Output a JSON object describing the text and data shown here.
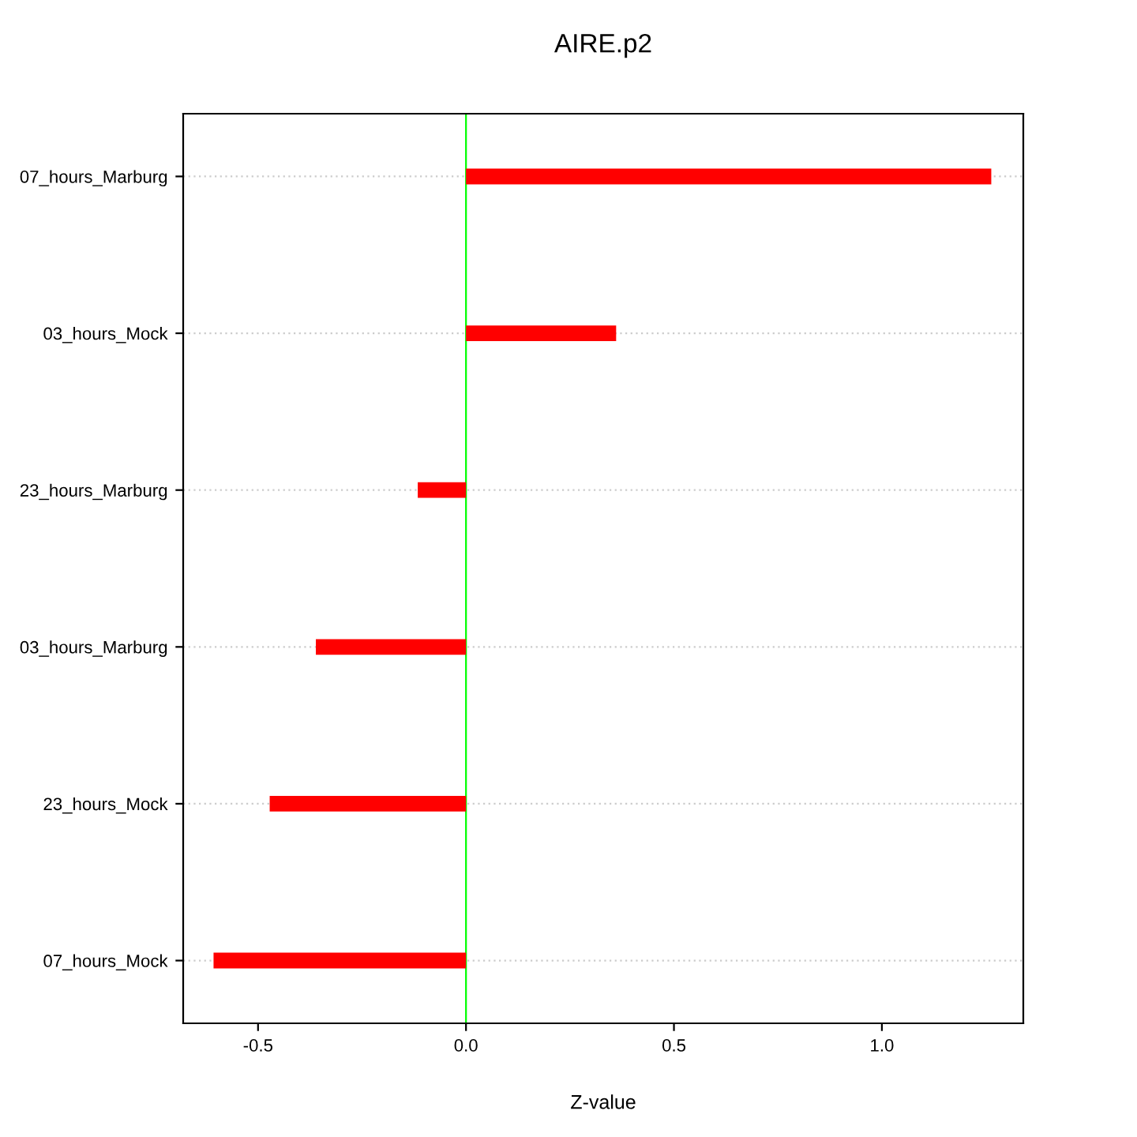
{
  "chart_data": {
    "type": "bar",
    "orientation": "horizontal",
    "title": "AIRE.p2",
    "xlabel": "Z-value",
    "categories": [
      "07_hours_Marburg",
      "03_hours_Mock",
      "23_hours_Marburg",
      "03_hours_Marburg",
      "23_hours_Mock",
      "07_hours_Mock"
    ],
    "values": [
      1.263,
      0.361,
      -0.116,
      -0.361,
      -0.472,
      -0.607
    ],
    "color": "#ff0000",
    "xlim": [
      -0.68,
      1.34
    ],
    "xticks": [
      -0.5,
      {
        "value": 0,
        "label": "0.0"
      },
      0.5,
      {
        "value": 1,
        "label": "1.0"
      }
    ],
    "ref_lines": [
      {
        "axis": "x",
        "value": 0,
        "color": "#00ff00"
      }
    ],
    "grid": "y"
  }
}
